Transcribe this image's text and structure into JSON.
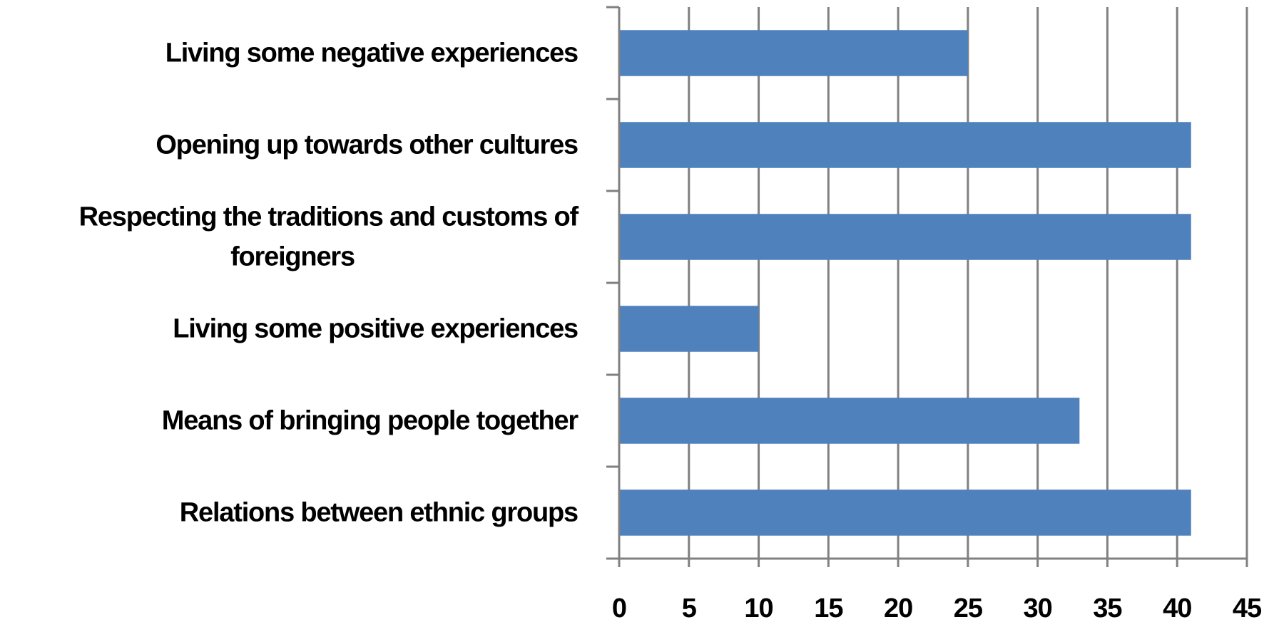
{
  "chart_data": {
    "type": "bar",
    "orientation": "horizontal",
    "categories": [
      "Living some negative experiences",
      "Opening up towards other cultures",
      "Respecting the traditions and customs of foreigners",
      "Living some positive experiences",
      "Means of bringing people together",
      "Relations between ethnic groups"
    ],
    "category_label_lines": [
      [
        "Living some negative experiences"
      ],
      [
        "Opening up towards other cultures"
      ],
      [
        "Respecting the traditions and customs of",
        "foreigners"
      ],
      [
        "Living some positive experiences"
      ],
      [
        "Means of bringing people together"
      ],
      [
        "Relations between ethnic groups"
      ]
    ],
    "values": [
      25,
      41,
      41,
      10,
      33,
      41
    ],
    "xlim": [
      0,
      45
    ],
    "x_ticks": [
      0,
      5,
      10,
      15,
      20,
      25,
      30,
      35,
      40,
      45
    ],
    "x_tick_labels": [
      "0",
      "5",
      "10",
      "15",
      "20",
      "25",
      "30",
      "35",
      "40",
      "45"
    ],
    "title": "",
    "xlabel": "",
    "ylabel": "",
    "grid": "vertical",
    "legend": "none",
    "bar_color": "#4F81BD",
    "grid_color": "#808080"
  }
}
